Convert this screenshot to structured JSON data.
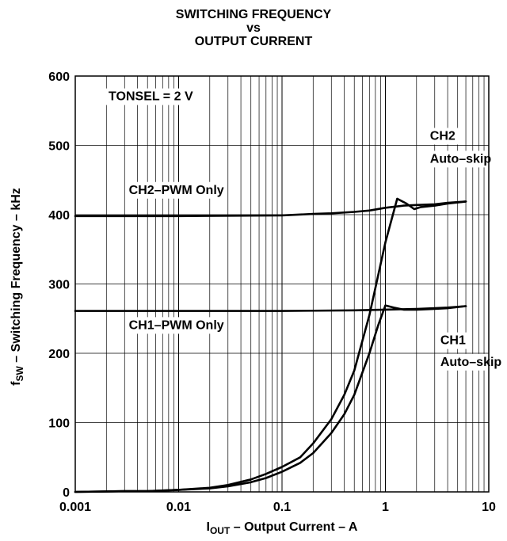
{
  "chart_data": {
    "type": "line",
    "title": [
      "SWITCHING FREQUENCY",
      "vs",
      "OUTPUT CURRENT"
    ],
    "xlabel": {
      "main": "I",
      "sub": "OUT",
      "rest": " – Output Current – A"
    },
    "ylabel": {
      "main": "f",
      "sub": "SW",
      "rest": " – Switching Frequency  – kHz"
    },
    "xscale": "log",
    "xlim": [
      0.001,
      10
    ],
    "ylim": [
      0,
      600
    ],
    "xticks": [
      0.001,
      0.01,
      0.1,
      1,
      10
    ],
    "xtick_labels": [
      "0.001",
      "0.01",
      "0.1",
      "1",
      "10"
    ],
    "yticks": [
      0,
      100,
      200,
      300,
      400,
      500,
      600
    ],
    "ytick_labels": [
      "0",
      "100",
      "200",
      "300",
      "400",
      "500",
      "600"
    ],
    "grid": true,
    "series": [
      {
        "name": "CH2–PWM Only",
        "x": [
          0.001,
          0.01,
          0.1,
          0.2,
          0.3,
          0.5,
          0.7,
          1,
          1.5,
          2,
          3,
          4,
          6
        ],
        "y": [
          398,
          398,
          399,
          401,
          402,
          404,
          406,
          410,
          413,
          414,
          415,
          417,
          419
        ]
      },
      {
        "name": "CH1–PWM Only",
        "x": [
          0.001,
          0.01,
          0.1,
          0.5,
          1,
          2,
          3,
          4,
          6
        ],
        "y": [
          261,
          261,
          261,
          262,
          263,
          264,
          265,
          266,
          268
        ]
      },
      {
        "name": "CH2 Auto–skip",
        "x": [
          0.001,
          0.003,
          0.005,
          0.01,
          0.02,
          0.03,
          0.05,
          0.07,
          0.1,
          0.15,
          0.2,
          0.3,
          0.4,
          0.5,
          0.7,
          1.0,
          1.3,
          1.6,
          1.9,
          2.2,
          3,
          4,
          6
        ],
        "y": [
          0,
          1,
          1,
          3,
          6,
          10,
          18,
          26,
          36,
          50,
          70,
          105,
          140,
          175,
          255,
          360,
          423,
          416,
          408,
          411,
          413,
          416,
          419
        ]
      },
      {
        "name": "CH1 Auto–skip",
        "x": [
          0.001,
          0.003,
          0.005,
          0.01,
          0.02,
          0.03,
          0.05,
          0.07,
          0.1,
          0.15,
          0.2,
          0.3,
          0.4,
          0.5,
          0.7,
          0.85,
          1.0,
          1.2,
          1.5,
          2,
          3,
          4,
          6
        ],
        "y": [
          0,
          1,
          1,
          3,
          5,
          8,
          14,
          20,
          29,
          42,
          56,
          85,
          112,
          140,
          200,
          240,
          269,
          266,
          263,
          263,
          264,
          265,
          268
        ]
      }
    ],
    "annotations": [
      {
        "text": "TONSEL = 2 V",
        "x": 0.0021,
        "y": 565
      },
      {
        "text": "CH2–PWM Only",
        "x": 0.0033,
        "y": 430
      },
      {
        "text": "CH1–PWM Only",
        "x": 0.0033,
        "y": 235
      },
      {
        "text": "CH2",
        "x": 2.7,
        "y": 508
      },
      {
        "text": "Auto–skip",
        "x": 2.7,
        "y": 475
      },
      {
        "text": "CH1",
        "x": 3.4,
        "y": 213
      },
      {
        "text": "Auto–skip",
        "x": 3.4,
        "y": 182
      }
    ]
  }
}
